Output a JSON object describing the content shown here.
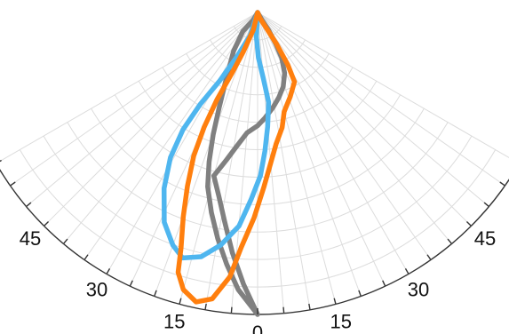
{
  "chart_data": {
    "type": "polar-line",
    "title": "",
    "angle_range": [
      -60,
      60
    ],
    "angle_tick_step": 5,
    "angle_tick_labels": [
      {
        "angle": -45,
        "text": "45"
      },
      {
        "angle": -30,
        "text": "30"
      },
      {
        "angle": -15,
        "text": "15"
      },
      {
        "angle": 0,
        "text": "0"
      },
      {
        "angle": 15,
        "text": "15"
      },
      {
        "angle": 30,
        "text": "30"
      },
      {
        "angle": 45,
        "text": "45"
      }
    ],
    "radial_rings": 11,
    "grid": true,
    "series": [
      {
        "color": "#808080",
        "points": [
          [
            0,
            1.0
          ],
          [
            -3,
            0.9
          ],
          [
            -6,
            0.8
          ],
          [
            -9,
            0.7
          ],
          [
            -12,
            0.62
          ],
          [
            -15,
            0.56
          ],
          [
            -12,
            0.5
          ],
          [
            -9,
            0.45
          ],
          [
            -5,
            0.4
          ],
          [
            0,
            0.375
          ],
          [
            4,
            0.35
          ],
          [
            9,
            0.32
          ],
          [
            14,
            0.29
          ],
          [
            19,
            0.26
          ],
          [
            24,
            0.22
          ],
          [
            28,
            0.17
          ],
          [
            30,
            0.12
          ],
          [
            32,
            0.07
          ],
          [
            30,
            0.03
          ],
          [
            0,
            0.0
          ],
          [
            -30,
            0.03
          ],
          [
            -38,
            0.08
          ],
          [
            -32,
            0.15
          ],
          [
            -25,
            0.25
          ],
          [
            -22,
            0.34
          ],
          [
            -20,
            0.43
          ],
          [
            -18,
            0.52
          ],
          [
            -16,
            0.6
          ],
          [
            -13,
            0.68
          ],
          [
            -10,
            0.76
          ],
          [
            -7,
            0.84
          ],
          [
            -4,
            0.92
          ],
          [
            0,
            1.0
          ]
        ]
      },
      {
        "color": "#4fb6ef",
        "points": [
          [
            0,
            0.0
          ],
          [
            -18,
            0.08
          ],
          [
            -25,
            0.16
          ],
          [
            -29,
            0.26
          ],
          [
            -32,
            0.36
          ],
          [
            -32.5,
            0.46
          ],
          [
            -31,
            0.56
          ],
          [
            -28,
            0.66
          ],
          [
            -24,
            0.76
          ],
          [
            -20,
            0.82
          ],
          [
            -17,
            0.85
          ],
          [
            -13,
            0.83
          ],
          [
            -9,
            0.78
          ],
          [
            -5,
            0.71
          ],
          [
            -2,
            0.62
          ],
          [
            1,
            0.54
          ],
          [
            3,
            0.46
          ],
          [
            5,
            0.38
          ],
          [
            7,
            0.3
          ],
          [
            5,
            0.22
          ],
          [
            1,
            0.15
          ],
          [
            -3,
            0.08
          ],
          [
            0,
            0.0
          ]
        ]
      },
      {
        "color": "#ff7f0e",
        "points": [
          [
            0,
            0.0
          ],
          [
            -14,
            0.06
          ],
          [
            -20,
            0.14
          ],
          [
            -23,
            0.22
          ],
          [
            -25,
            0.32
          ],
          [
            -25,
            0.42
          ],
          [
            -24,
            0.52
          ],
          [
            -22,
            0.62
          ],
          [
            -20,
            0.72
          ],
          [
            -18,
            0.82
          ],
          [
            -17,
            0.9
          ],
          [
            -15,
            0.95
          ],
          [
            -12,
            0.98
          ],
          [
            -9,
            0.96
          ],
          [
            -6,
            0.88
          ],
          [
            -4,
            0.78
          ],
          [
            -1,
            0.68
          ],
          [
            2,
            0.58
          ],
          [
            5,
            0.5
          ],
          [
            8,
            0.44
          ],
          [
            12,
            0.39
          ],
          [
            15,
            0.34
          ],
          [
            21,
            0.3
          ],
          [
            28,
            0.26
          ],
          [
            30,
            0.2
          ],
          [
            31,
            0.12
          ],
          [
            29,
            0.06
          ],
          [
            22,
            0.02
          ],
          [
            0,
            0.0
          ]
        ]
      }
    ]
  }
}
